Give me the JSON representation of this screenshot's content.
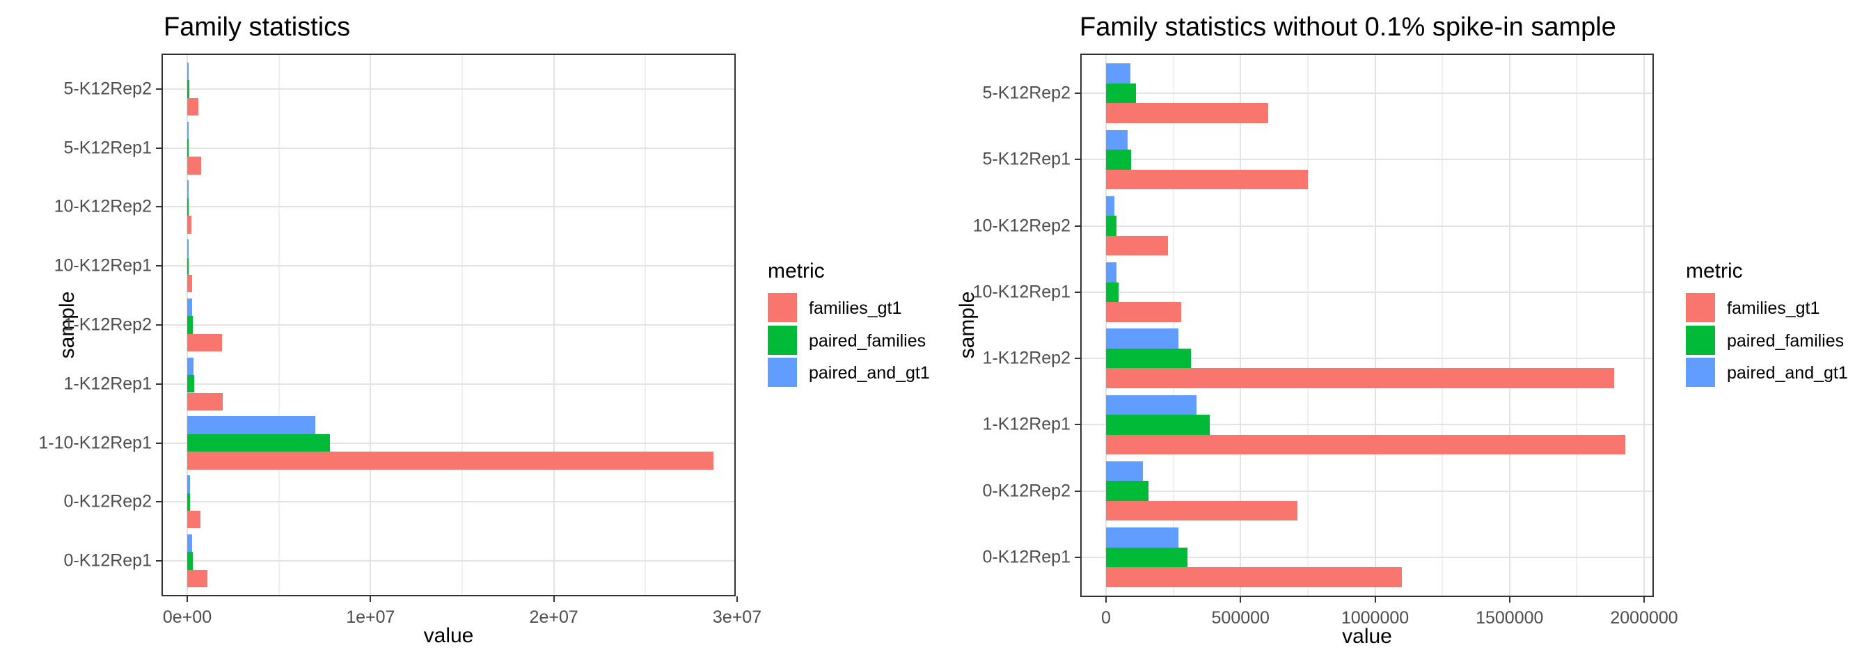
{
  "chart_data": [
    {
      "type": "bar",
      "orientation": "horizontal",
      "title": "Family statistics",
      "xlabel": "value",
      "ylabel": "sample",
      "grid": "on",
      "legend_position": "right",
      "legend": {
        "title": "metric",
        "entries": [
          {
            "label": "families_gt1",
            "color": "#F8766D"
          },
          {
            "label": "paired_families",
            "color": "#00BA38"
          },
          {
            "label": "paired_and_gt1",
            "color": "#619CFF"
          }
        ]
      },
      "x_ticks": [
        {
          "label": "0e+00",
          "value": 0
        },
        {
          "label": "1e+07",
          "value": 10000000
        },
        {
          "label": "2e+07",
          "value": 20000000
        },
        {
          "label": "3e+07",
          "value": 30000000
        }
      ],
      "xlim": [
        0,
        30200000
      ],
      "categories": [
        "5-K12Rep2",
        "5-K12Rep1",
        "10-K12Rep2",
        "10-K12Rep1",
        "1-K12Rep2",
        "1-K12Rep1",
        "1-10-K12Rep1",
        "0-K12Rep2",
        "0-K12Rep1"
      ],
      "series": [
        {
          "name": "families_gt1",
          "color": "#F8766D",
          "values": [
            604000,
            750000,
            229000,
            280000,
            1890000,
            1930000,
            28700000,
            712000,
            1100000
          ]
        },
        {
          "name": "paired_families",
          "color": "#00BA38",
          "values": [
            110000,
            93000,
            38000,
            47000,
            315000,
            385000,
            7800000,
            157000,
            303000
          ]
        },
        {
          "name": "paired_and_gt1",
          "color": "#619CFF",
          "values": [
            90000,
            80000,
            31000,
            40000,
            268000,
            337000,
            7000000,
            136000,
            270000
          ]
        }
      ]
    },
    {
      "type": "bar",
      "orientation": "horizontal",
      "title": "Family statistics without 0.1% spike-in sample",
      "xlabel": "value",
      "ylabel": "sample",
      "grid": "on",
      "legend_position": "right",
      "legend": {
        "title": "metric",
        "entries": [
          {
            "label": "families_gt1",
            "color": "#F8766D"
          },
          {
            "label": "paired_families",
            "color": "#00BA38"
          },
          {
            "label": "paired_and_gt1",
            "color": "#619CFF"
          }
        ]
      },
      "x_ticks": [
        {
          "label": "0",
          "value": 0
        },
        {
          "label": "500000",
          "value": 500000
        },
        {
          "label": "1000000",
          "value": 1000000
        },
        {
          "label": "1500000",
          "value": 1500000
        },
        {
          "label": "2000000",
          "value": 2000000
        }
      ],
      "xlim": [
        0,
        2035000
      ],
      "categories": [
        "5-K12Rep2",
        "5-K12Rep1",
        "10-K12Rep2",
        "10-K12Rep1",
        "1-K12Rep2",
        "1-K12Rep1",
        "0-K12Rep2",
        "0-K12Rep1"
      ],
      "series": [
        {
          "name": "families_gt1",
          "color": "#F8766D",
          "values": [
            604000,
            750000,
            229000,
            280000,
            1890000,
            1930000,
            712000,
            1100000
          ]
        },
        {
          "name": "paired_families",
          "color": "#00BA38",
          "values": [
            110000,
            93000,
            38000,
            47000,
            315000,
            385000,
            157000,
            303000
          ]
        },
        {
          "name": "paired_and_gt1",
          "color": "#619CFF",
          "values": [
            90000,
            80000,
            31000,
            40000,
            268000,
            337000,
            136000,
            270000
          ]
        }
      ]
    }
  ]
}
